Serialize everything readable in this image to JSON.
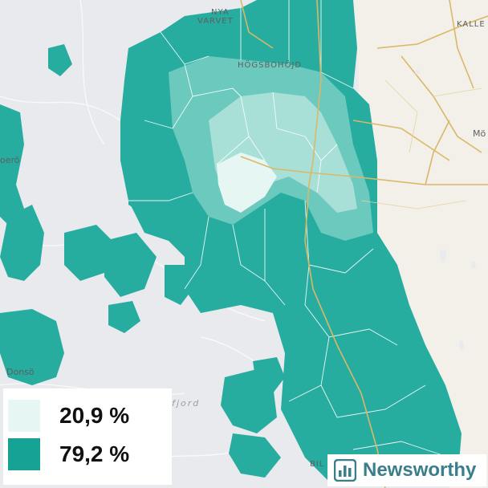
{
  "map": {
    "place_labels": {
      "nya_varvet": [
        "NYA",
        "VARVET"
      ],
      "hogsbohojd": "HÖGSBOHÖJD",
      "kalle": "KALLE",
      "molndal": "Mö",
      "donso": "Donsö",
      "styrso": "oerö",
      "billdal": "BIL"
    },
    "water_label": "Askimsfjord",
    "colors": {
      "water": "#e8eaee",
      "land": "#f3f0ea",
      "low_share": "#e6f6f3",
      "high_share": "#16a396",
      "roads": "#d9b867",
      "boundaries": "#ffffff"
    }
  },
  "legend": {
    "items": [
      {
        "value": "20,9 %",
        "color": "#e6f6f3"
      },
      {
        "value": "79,2 %",
        "color": "#16a396"
      }
    ]
  },
  "brand": {
    "name": "Newsworthy",
    "logo_icon": "newsworthy-logo-icon"
  }
}
